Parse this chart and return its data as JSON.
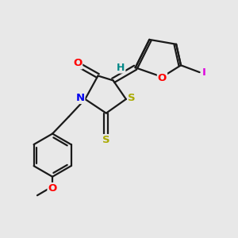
{
  "bg_color": "#e8e8e8",
  "bond_color": "#1a1a1a",
  "bond_width": 1.6,
  "atom_colors": {
    "O": "#ff0000",
    "N": "#0000ee",
    "S": "#aaaa00",
    "I": "#dd00dd",
    "H": "#008888",
    "C": "#1a1a1a"
  },
  "font_size": 9.5
}
